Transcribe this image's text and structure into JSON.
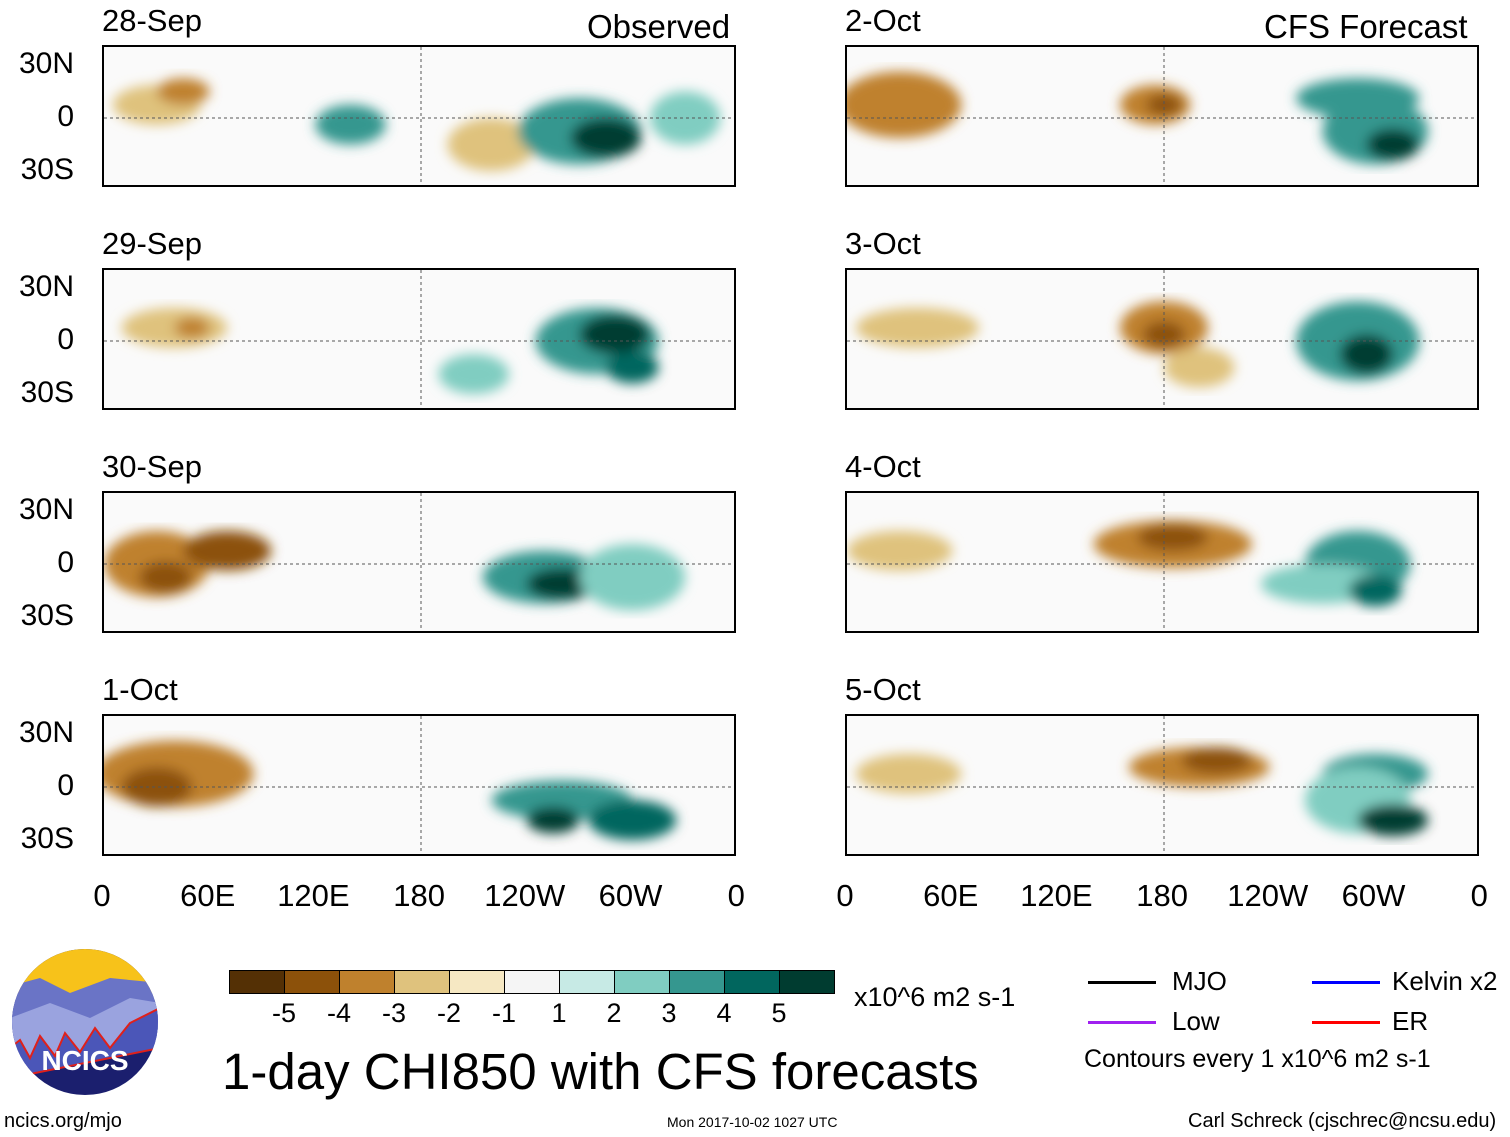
{
  "left_header": "Observed",
  "right_header": "CFS Forecast",
  "panels_left": [
    "28-Sep",
    "29-Sep",
    "30-Sep",
    "1-Oct"
  ],
  "panels_right": [
    "2-Oct",
    "3-Oct",
    "4-Oct",
    "5-Oct"
  ],
  "lat_labels": [
    "30N",
    "0",
    "30S"
  ],
  "lon_labels": [
    "0",
    "60E",
    "120E",
    "180",
    "120W",
    "60W",
    "0"
  ],
  "colorbar": {
    "labels": [
      "-5",
      "-4",
      "-3",
      "-2",
      "-1",
      "1",
      "2",
      "3",
      "4",
      "5"
    ],
    "colors": [
      "#543005",
      "#8c510a",
      "#bf812d",
      "#dfc27d",
      "#f6e8c3",
      "#f5f5f5",
      "#c7eae5",
      "#80cdc1",
      "#35978f",
      "#01665e",
      "#003c30"
    ],
    "units": "x10^6 m2 s-1"
  },
  "title": "1-day CHI850 with CFS forecasts",
  "legend": {
    "items": [
      {
        "label": "MJO",
        "color": "#000000"
      },
      {
        "label": "Kelvin x2",
        "color": "#0000ff"
      },
      {
        "label": "Low",
        "color": "#a020f0"
      },
      {
        "label": "ER",
        "color": "#ff0000"
      }
    ],
    "note": "Contours every 1 x10^6 m2 s-1"
  },
  "logo_text": "NCICS",
  "footer": {
    "url": "ncics.org/mjo",
    "timestamp": "Mon 2017-10-02 1027 UTC",
    "credit": "Carl Schreck (cjschrec@ncsu.edu)"
  }
}
